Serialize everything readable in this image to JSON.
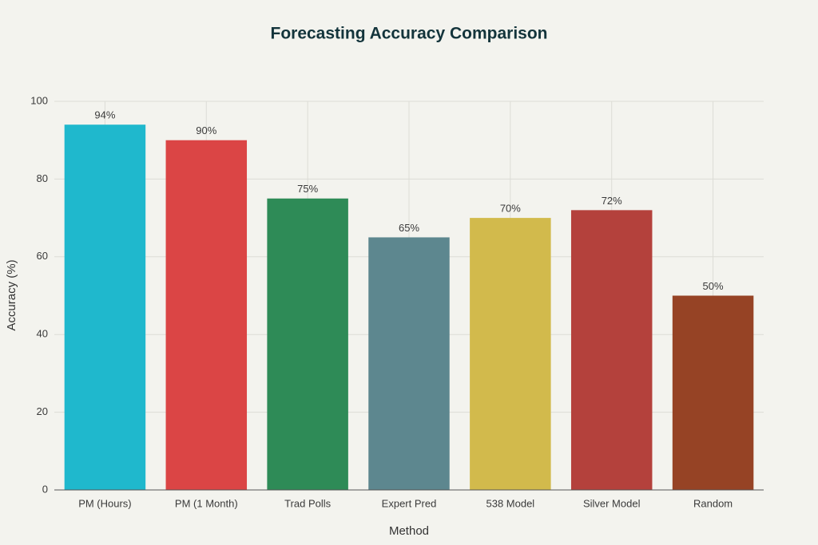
{
  "chart_data": {
    "type": "bar",
    "title": "Forecasting Accuracy Comparison",
    "x_label": "Method",
    "y_label": "Accuracy (%)",
    "categories": [
      "PM (Hours)",
      "PM (1 Month)",
      "Trad Polls",
      "Expert Pred",
      "538 Model",
      "Silver Model",
      "Random"
    ],
    "values": [
      94,
      90,
      75,
      65,
      70,
      72,
      50
    ],
    "value_labels": [
      "94%",
      "90%",
      "75%",
      "65%",
      "70%",
      "72%",
      "50%"
    ],
    "colors": [
      "#1fb8cd",
      "#db4545",
      "#2e8b57",
      "#5d878f",
      "#d2ba4c",
      "#b4413c",
      "#964325"
    ],
    "ylim": [
      0,
      100
    ],
    "yticks": [
      0,
      20,
      40,
      60,
      80,
      100
    ],
    "grid": true
  }
}
